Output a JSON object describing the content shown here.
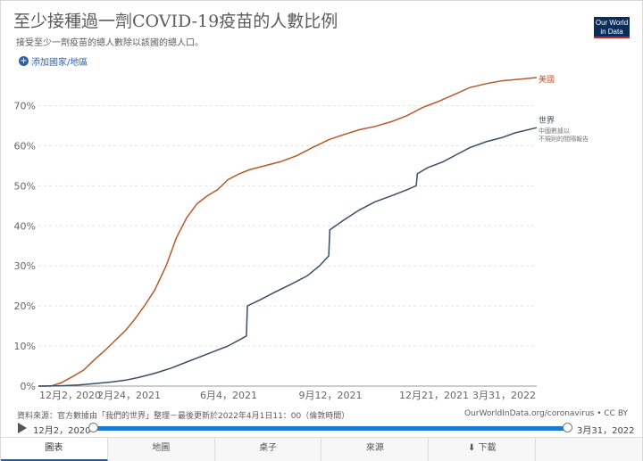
{
  "header": {
    "title": "至少接種過一劑COVID-19疫苗的人數比例",
    "subtitle": "接受至少一劑疫苗的總人數除以該國的總人口。",
    "logo_line1": "Our World",
    "logo_line2": "in Data",
    "add_country": "添加國家/地區"
  },
  "chart_data": {
    "type": "line",
    "y_ticks": [
      "0%",
      "10%",
      "20%",
      "30%",
      "40%",
      "50%",
      "60%",
      "70%"
    ],
    "x_ticks": [
      "12月2，2020",
      "2月24，2021",
      "6月4，2021",
      "9月12，2021",
      "12月21，2021",
      "3月31，2022"
    ],
    "x_label_pieces": [
      {
        "text": "12月2，",
        "anchor": "start"
      },
      {
        "text": "2020",
        "anchor": "start"
      },
      {
        "text": "2月24，2021",
        "anchor": "start"
      },
      {
        "text": "6月4，2021",
        "anchor": "middle"
      },
      {
        "text": "9月12，2021",
        "anchor": "middle"
      },
      {
        "text": "12月21，2021",
        "anchor": "middle"
      },
      {
        "text": "3月31，2022",
        "anchor": "end"
      }
    ],
    "ylim": [
      0,
      75
    ],
    "xlim": [
      "2020-12-02",
      "2022-03-31"
    ],
    "series": [
      {
        "name": "美國",
        "color": "#b65a2b",
        "points": [
          [
            "2020-12-02",
            0
          ],
          [
            "2020-12-14",
            0
          ],
          [
            "2020-12-24",
            0.8
          ],
          [
            "2021-01-05",
            2.5
          ],
          [
            "2021-01-15",
            4.0
          ],
          [
            "2021-01-25",
            6.5
          ],
          [
            "2021-02-05",
            9.0
          ],
          [
            "2021-02-15",
            11.5
          ],
          [
            "2021-02-25",
            14.0
          ],
          [
            "2021-03-05",
            16.5
          ],
          [
            "2021-03-15",
            20.0
          ],
          [
            "2021-03-25",
            24.0
          ],
          [
            "2021-04-05",
            30.0
          ],
          [
            "2021-04-15",
            37.0
          ],
          [
            "2021-04-25",
            42.0
          ],
          [
            "2021-05-05",
            45.5
          ],
          [
            "2021-05-15",
            47.5
          ],
          [
            "2021-05-25",
            49.0
          ],
          [
            "2021-06-04",
            51.5
          ],
          [
            "2021-06-15",
            53.0
          ],
          [
            "2021-06-25",
            54.0
          ],
          [
            "2021-07-10",
            55.0
          ],
          [
            "2021-07-25",
            56.0
          ],
          [
            "2021-08-10",
            57.5
          ],
          [
            "2021-08-25",
            59.5
          ],
          [
            "2021-09-10",
            61.5
          ],
          [
            "2021-09-25",
            62.8
          ],
          [
            "2021-10-10",
            64.0
          ],
          [
            "2021-10-25",
            64.8
          ],
          [
            "2021-11-10",
            66.0
          ],
          [
            "2021-11-25",
            67.5
          ],
          [
            "2021-12-10",
            69.5
          ],
          [
            "2021-12-25",
            71.0
          ],
          [
            "2022-01-10",
            72.8
          ],
          [
            "2022-01-25",
            74.5
          ],
          [
            "2022-02-10",
            75.5
          ],
          [
            "2022-02-25",
            76.2
          ],
          [
            "2022-03-15",
            76.6
          ],
          [
            "2022-03-31",
            77.0
          ]
        ]
      },
      {
        "name": "世界",
        "color": "#3c4e66",
        "points": [
          [
            "2020-12-02",
            0
          ],
          [
            "2020-12-24",
            0.1
          ],
          [
            "2021-01-10",
            0.3
          ],
          [
            "2021-01-25",
            0.6
          ],
          [
            "2021-02-10",
            1.0
          ],
          [
            "2021-02-25",
            1.5
          ],
          [
            "2021-03-10",
            2.2
          ],
          [
            "2021-03-25",
            3.2
          ],
          [
            "2021-04-10",
            4.5
          ],
          [
            "2021-04-25",
            6.0
          ],
          [
            "2021-05-10",
            7.5
          ],
          [
            "2021-05-25",
            9.0
          ],
          [
            "2021-06-04",
            10.0
          ],
          [
            "2021-06-15",
            11.5
          ],
          [
            "2021-06-22",
            12.5
          ],
          [
            "2021-06-23",
            20.0
          ],
          [
            "2021-07-05",
            21.5
          ],
          [
            "2021-07-20",
            23.5
          ],
          [
            "2021-08-05",
            25.5
          ],
          [
            "2021-08-20",
            27.5
          ],
          [
            "2021-09-01",
            30.0
          ],
          [
            "2021-09-10",
            32.5
          ],
          [
            "2021-09-11",
            39.0
          ],
          [
            "2021-09-25",
            41.5
          ],
          [
            "2021-10-10",
            44.0
          ],
          [
            "2021-10-25",
            46.0
          ],
          [
            "2021-11-10",
            47.5
          ],
          [
            "2021-11-25",
            49.0
          ],
          [
            "2021-12-04",
            50.0
          ],
          [
            "2021-12-05",
            53.0
          ],
          [
            "2021-12-15",
            54.5
          ],
          [
            "2021-12-30",
            56.0
          ],
          [
            "2022-01-10",
            57.5
          ],
          [
            "2022-01-25",
            59.5
          ],
          [
            "2022-02-10",
            61.0
          ],
          [
            "2022-02-25",
            62.0
          ],
          [
            "2022-03-10",
            63.2
          ],
          [
            "2022-03-31",
            64.5
          ]
        ],
        "note_line1": "中國數據以",
        "note_line2": "不規則的間隔報告"
      }
    ]
  },
  "footer": {
    "source": "資料來源：官方數據由「我們的世界」整理－最後更新於2022年4月1日11：00（倫敦時間）",
    "url": "OurWorldInData.org/coronavirus • CC BY"
  },
  "timeline": {
    "start_label": "12月2，2020",
    "end_label": "3月31，2022",
    "range_fraction": [
      0,
      1
    ]
  },
  "tabs": [
    {
      "label": "圖表",
      "active": true
    },
    {
      "label": "地圖",
      "active": false
    },
    {
      "label": "桌子",
      "active": false
    },
    {
      "label": "來源",
      "active": false
    },
    {
      "label": "⬇ 下載",
      "active": false
    },
    {
      "label": "",
      "active": false
    }
  ]
}
